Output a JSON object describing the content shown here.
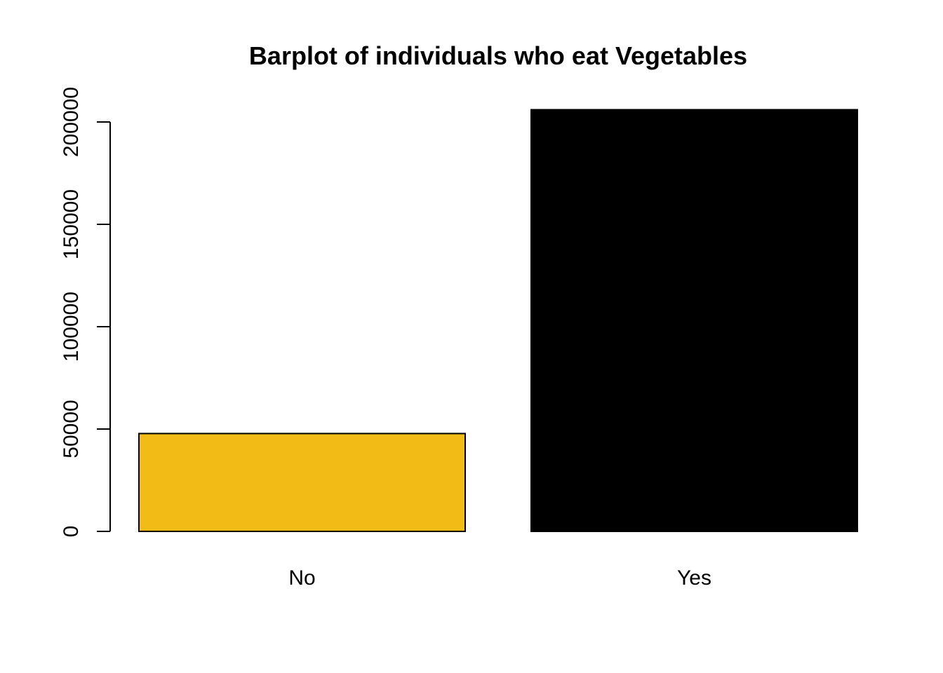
{
  "chart_data": {
    "type": "bar",
    "title": "Barplot of individuals who eat Vegetables",
    "xlabel": "",
    "ylabel": "",
    "categories": [
      "No",
      "Yes"
    ],
    "values": [
      47800,
      206000
    ],
    "colors": [
      "#F1BC15",
      "#000000"
    ],
    "ylim": [
      0,
      206000
    ],
    "yticks": [
      0,
      50000,
      100000,
      150000,
      200000
    ],
    "ytick_labels": [
      "0",
      "50000",
      "100000",
      "150000",
      "200000"
    ],
    "grid": false,
    "legend": "none"
  }
}
